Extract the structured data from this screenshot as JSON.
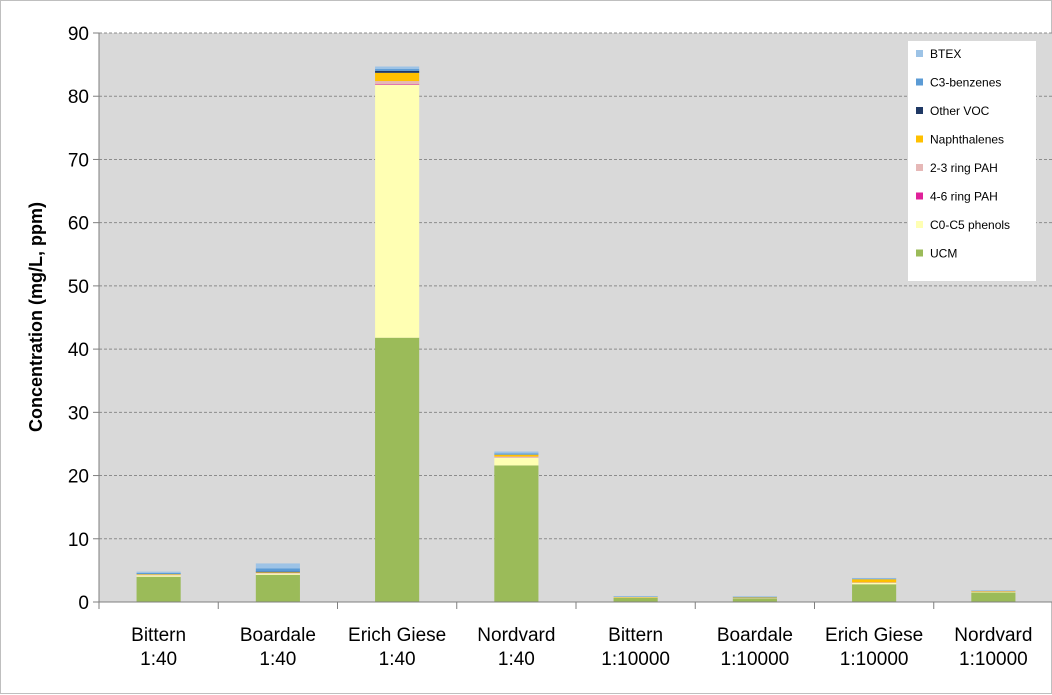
{
  "chart_data": {
    "type": "bar",
    "stacked": true,
    "ylabel": "Concentration (mg/L, ppm)",
    "xlabel": "",
    "ylim": [
      0,
      90
    ],
    "yticks": [
      0,
      10,
      20,
      30,
      40,
      50,
      60,
      70,
      80,
      90
    ],
    "grid": true,
    "legend_position": "top-right",
    "categories": [
      [
        "Bittern",
        "1:40"
      ],
      [
        "Boardale",
        "1:40"
      ],
      [
        "Erich Giese",
        "1:40"
      ],
      [
        "Nordvard",
        "1:40"
      ],
      [
        "Bittern",
        "1:10000"
      ],
      [
        "Boardale",
        "1:10000"
      ],
      [
        "Erich Giese",
        "1:10000"
      ],
      [
        "Nordvard",
        "1:10000"
      ]
    ],
    "series": [
      {
        "name": "UCM",
        "color": "#9bbb59",
        "values": [
          4.0,
          4.3,
          41.8,
          21.6,
          0.7,
          0.6,
          2.8,
          1.5
        ]
      },
      {
        "name": "C0-C5 phenols",
        "color": "#ffffb3",
        "values": [
          0.2,
          0.2,
          40.0,
          1.2,
          0.05,
          0.05,
          0.2,
          0.1
        ]
      },
      {
        "name": "4-6 ring PAH",
        "color": "#e0219a",
        "values": [
          0.0,
          0.0,
          0.1,
          0.0,
          0.0,
          0.0,
          0.0,
          0.0
        ]
      },
      {
        "name": "2-3 ring PAH",
        "color": "#e6b8b7",
        "values": [
          0.1,
          0.1,
          0.5,
          0.2,
          0.02,
          0.02,
          0.1,
          0.05
        ]
      },
      {
        "name": "Naphthalenes",
        "color": "#ffc000",
        "values": [
          0.1,
          0.1,
          1.3,
          0.3,
          0.05,
          0.05,
          0.5,
          0.1
        ]
      },
      {
        "name": "Other VOC",
        "color": "#1f3864",
        "values": [
          0.0,
          0.1,
          0.3,
          0.0,
          0.0,
          0.0,
          0.0,
          0.0
        ]
      },
      {
        "name": "C3-benzenes",
        "color": "#5b9bd5",
        "values": [
          0.2,
          0.5,
          0.3,
          0.2,
          0.05,
          0.1,
          0.1,
          0.05
        ]
      },
      {
        "name": "BTEX",
        "color": "#9dc3e6",
        "values": [
          0.2,
          0.8,
          0.4,
          0.3,
          0.05,
          0.1,
          0.1,
          0.05
        ]
      }
    ]
  }
}
